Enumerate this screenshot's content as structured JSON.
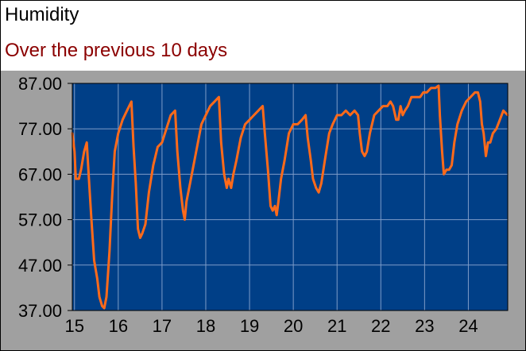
{
  "header": {
    "title": "Humidity",
    "subtitle": "Over the previous 10 days"
  },
  "colors": {
    "panel_background": "#a0a0a0",
    "plot_background": "#003f87",
    "grid": "#7e9cc8",
    "series": "#ff6a1a",
    "subtitle": "#8b0000",
    "tick_text": "#000000"
  },
  "chart_data": {
    "type": "line",
    "title": "Humidity",
    "subtitle": "Over the previous 10 days",
    "xlabel": "",
    "ylabel": "",
    "xlim": [
      14.95,
      24.9
    ],
    "ylim": [
      37,
      87
    ],
    "x_ticks": [
      15,
      16,
      17,
      18,
      19,
      20,
      21,
      22,
      23,
      24
    ],
    "y_ticks": [
      "87.00",
      "77.00",
      "67.00",
      "57.00",
      "47.00",
      "37.00"
    ],
    "grid": true,
    "series": [
      {
        "points": [
          [
            14.95,
            76
          ],
          [
            15.0,
            72
          ],
          [
            15.03,
            66
          ],
          [
            15.1,
            66
          ],
          [
            15.15,
            68
          ],
          [
            15.22,
            72
          ],
          [
            15.28,
            74
          ],
          [
            15.33,
            66
          ],
          [
            15.38,
            58
          ],
          [
            15.45,
            48
          ],
          [
            15.52,
            44
          ],
          [
            15.57,
            40
          ],
          [
            15.63,
            38
          ],
          [
            15.68,
            37.5
          ],
          [
            15.73,
            40
          ],
          [
            15.8,
            50
          ],
          [
            15.86,
            62
          ],
          [
            15.92,
            72
          ],
          [
            16.0,
            76
          ],
          [
            16.1,
            79
          ],
          [
            16.2,
            81
          ],
          [
            16.3,
            83
          ],
          [
            16.35,
            73
          ],
          [
            16.4,
            65
          ],
          [
            16.45,
            55
          ],
          [
            16.5,
            53
          ],
          [
            16.55,
            54
          ],
          [
            16.62,
            56
          ],
          [
            16.7,
            63
          ],
          [
            16.8,
            69
          ],
          [
            16.9,
            73
          ],
          [
            17.0,
            74
          ],
          [
            17.1,
            77
          ],
          [
            17.2,
            80
          ],
          [
            17.3,
            81
          ],
          [
            17.35,
            72
          ],
          [
            17.42,
            64
          ],
          [
            17.48,
            59
          ],
          [
            17.52,
            57
          ],
          [
            17.56,
            61
          ],
          [
            17.62,
            64
          ],
          [
            17.7,
            68
          ],
          [
            17.8,
            73
          ],
          [
            17.9,
            78
          ],
          [
            18.0,
            80
          ],
          [
            18.1,
            82
          ],
          [
            18.2,
            83
          ],
          [
            18.3,
            84
          ],
          [
            18.35,
            74
          ],
          [
            18.42,
            67
          ],
          [
            18.48,
            64
          ],
          [
            18.52,
            66
          ],
          [
            18.58,
            64
          ],
          [
            18.63,
            67
          ],
          [
            18.7,
            70
          ],
          [
            18.8,
            75
          ],
          [
            18.9,
            78
          ],
          [
            19.0,
            79
          ],
          [
            19.1,
            80
          ],
          [
            19.2,
            81
          ],
          [
            19.3,
            82
          ],
          [
            19.35,
            76
          ],
          [
            19.42,
            68
          ],
          [
            19.48,
            60
          ],
          [
            19.53,
            59
          ],
          [
            19.58,
            60
          ],
          [
            19.62,
            58
          ],
          [
            19.66,
            61
          ],
          [
            19.72,
            66
          ],
          [
            19.8,
            70
          ],
          [
            19.9,
            76
          ],
          [
            20.0,
            78
          ],
          [
            20.1,
            78
          ],
          [
            20.2,
            79
          ],
          [
            20.28,
            80
          ],
          [
            20.33,
            75
          ],
          [
            20.4,
            70
          ],
          [
            20.45,
            66
          ],
          [
            20.52,
            64
          ],
          [
            20.58,
            63
          ],
          [
            20.64,
            65
          ],
          [
            20.72,
            70
          ],
          [
            20.82,
            76
          ],
          [
            20.9,
            78
          ],
          [
            21.0,
            80
          ],
          [
            21.1,
            80
          ],
          [
            21.2,
            81
          ],
          [
            21.3,
            80
          ],
          [
            21.4,
            81
          ],
          [
            21.48,
            80
          ],
          [
            21.52,
            76
          ],
          [
            21.57,
            72
          ],
          [
            21.63,
            71
          ],
          [
            21.68,
            72
          ],
          [
            21.75,
            76
          ],
          [
            21.85,
            80
          ],
          [
            21.95,
            81
          ],
          [
            22.05,
            82
          ],
          [
            22.15,
            82
          ],
          [
            22.22,
            83
          ],
          [
            22.28,
            82
          ],
          [
            22.35,
            79
          ],
          [
            22.4,
            79
          ],
          [
            22.45,
            82
          ],
          [
            22.5,
            80
          ],
          [
            22.55,
            81
          ],
          [
            22.62,
            82
          ],
          [
            22.7,
            84
          ],
          [
            22.8,
            84
          ],
          [
            22.9,
            84
          ],
          [
            22.97,
            85
          ],
          [
            23.05,
            85
          ],
          [
            23.15,
            86
          ],
          [
            23.25,
            86
          ],
          [
            23.32,
            86.5
          ],
          [
            23.35,
            80
          ],
          [
            23.4,
            72
          ],
          [
            23.44,
            67
          ],
          [
            23.5,
            68
          ],
          [
            23.56,
            68
          ],
          [
            23.62,
            69
          ],
          [
            23.68,
            74
          ],
          [
            23.75,
            78
          ],
          [
            23.85,
            81
          ],
          [
            23.95,
            83
          ],
          [
            24.05,
            84
          ],
          [
            24.15,
            85
          ],
          [
            24.22,
            85
          ],
          [
            24.27,
            83
          ],
          [
            24.31,
            78
          ],
          [
            24.35,
            76
          ],
          [
            24.4,
            71
          ],
          [
            24.45,
            74
          ],
          [
            24.5,
            74
          ],
          [
            24.56,
            76
          ],
          [
            24.64,
            77
          ],
          [
            24.72,
            79
          ],
          [
            24.8,
            81
          ],
          [
            24.9,
            80
          ]
        ]
      }
    ]
  }
}
